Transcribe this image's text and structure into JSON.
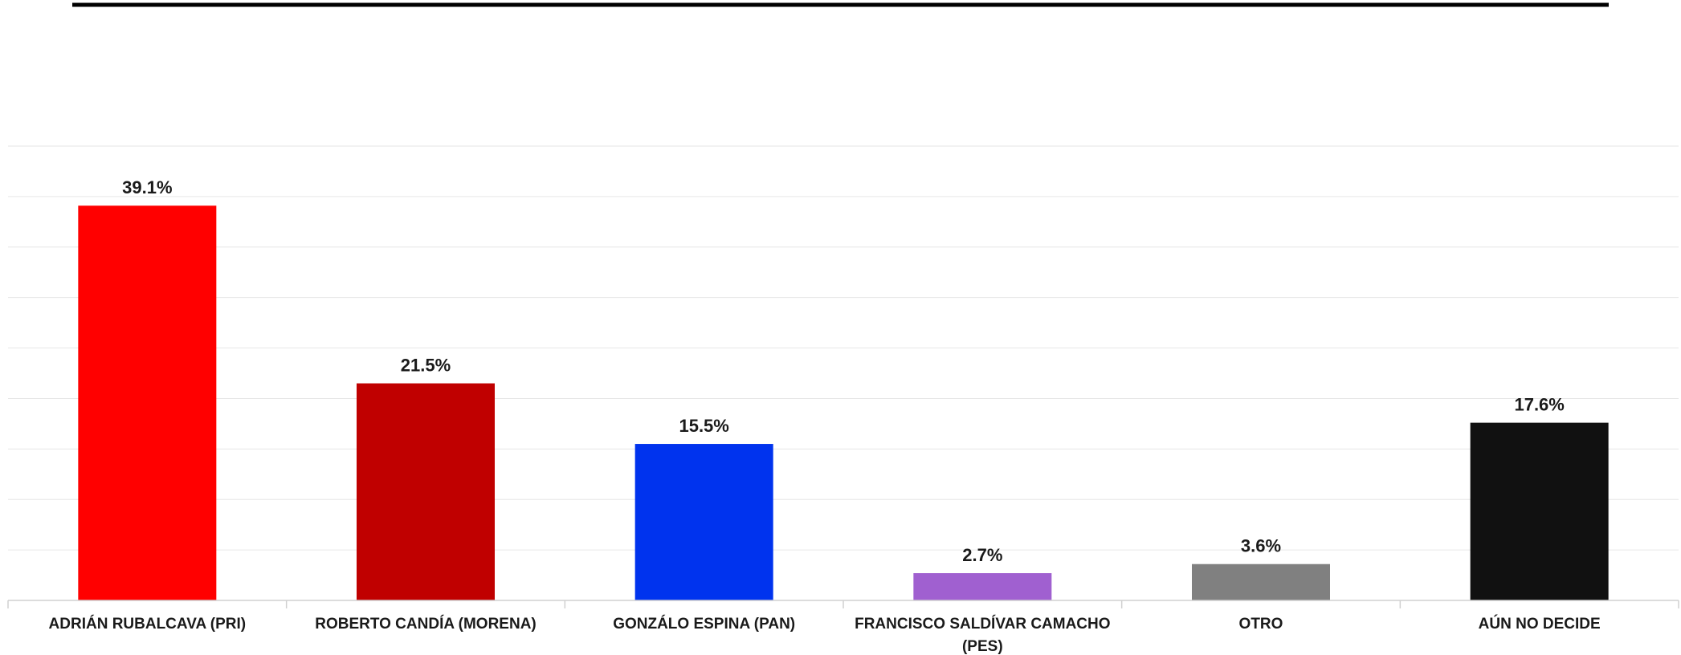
{
  "chart_data": {
    "type": "bar",
    "title": "",
    "xlabel": "",
    "ylabel": "",
    "ylim": [
      0,
      45
    ],
    "grid": true,
    "legend": "none",
    "categories": [
      "ADRIÁN RUBALCAVA (PRI)",
      "ROBERTO CANDÍA (MORENA)",
      "GONZÁLO ESPINA (PAN)",
      "FRANCISCO SALDÍVAR CAMACHO (PES)",
      "OTRO",
      "AÚN NO DECIDE"
    ],
    "values": [
      39.1,
      21.5,
      15.5,
      2.7,
      3.6,
      17.6
    ],
    "value_labels": [
      "39.1%",
      "21.5%",
      "15.5%",
      "2.7%",
      "3.6%",
      "17.6%"
    ],
    "colors": [
      "#ff0000",
      "#c00000",
      "#0033ee",
      "#a060d0",
      "#808080",
      "#111111"
    ]
  }
}
